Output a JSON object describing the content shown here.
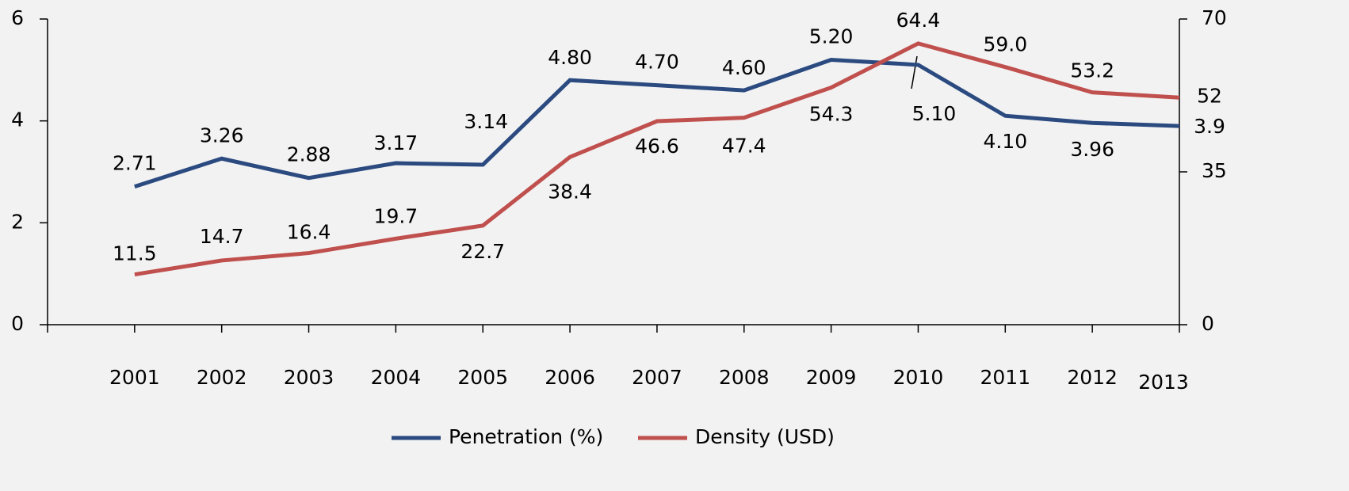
{
  "chart_data": {
    "type": "line",
    "categories": [
      "2001",
      "2002",
      "2003",
      "2004",
      "2005",
      "2006",
      "2007",
      "2008",
      "2009",
      "2010",
      "2011",
      "2012",
      "2013"
    ],
    "series": [
      {
        "name": "Penetration (%)",
        "color": "#2b4a80",
        "axis": "y",
        "values": [
          2.71,
          3.26,
          2.88,
          3.17,
          3.14,
          4.8,
          4.7,
          4.6,
          5.2,
          5.1,
          4.1,
          3.96,
          3.9
        ],
        "value_labels": [
          "2.71",
          "3.26",
          "2.88",
          "3.17",
          "3.14",
          "4.80",
          "4.70",
          "4.60",
          "5.20",
          "5.10",
          "4.10",
          "3.96",
          "3.9"
        ]
      },
      {
        "name": "Density (USD)",
        "color": "#c0504d",
        "axis": "y2",
        "values": [
          11.5,
          14.7,
          16.4,
          19.7,
          22.7,
          38.4,
          46.6,
          47.4,
          54.3,
          64.4,
          59.0,
          53.2,
          52
        ],
        "value_labels": [
          "11.5",
          "14.7",
          "16.4",
          "19.7",
          "22.7",
          "38.4",
          "46.6",
          "47.4",
          "54.3",
          "64.4",
          "59.0",
          "53.2",
          "52"
        ]
      }
    ],
    "ylim": [
      0,
      6
    ],
    "yticks": [
      0,
      2,
      4,
      6
    ],
    "y2lim": [
      0,
      70
    ],
    "y2ticks": [
      0,
      35,
      70
    ],
    "legend": "bottom"
  }
}
